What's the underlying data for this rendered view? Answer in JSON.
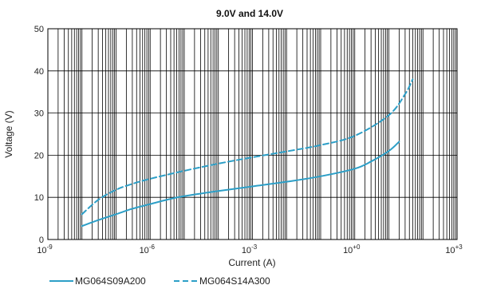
{
  "chart_data": {
    "type": "line",
    "title": "9.0V and 14.0V",
    "xlabel": "Current (A)",
    "ylabel": "Voltage (V)",
    "x_scale": "log",
    "xlim": [
      1e-09,
      1000
    ],
    "ylim": [
      0,
      50
    ],
    "x_ticks": [
      {
        "value": 1e-09,
        "base": "10",
        "exp": "-9"
      },
      {
        "value": 1e-06,
        "base": "10",
        "exp": "-6"
      },
      {
        "value": 0.001,
        "base": "10",
        "exp": "-3"
      },
      {
        "value": 1,
        "base": "10",
        "exp": "+0"
      },
      {
        "value": 1000,
        "base": "10",
        "exp": "+3"
      }
    ],
    "y_ticks": [
      0,
      10,
      20,
      30,
      40,
      50
    ],
    "grid": true,
    "legend_position": "bottom-left",
    "series": [
      {
        "name": "MG064S09A200",
        "style": "solid",
        "color": "#2d9fc7",
        "x": [
          1e-08,
          3e-08,
          1e-07,
          3e-07,
          1e-06,
          3e-06,
          1e-05,
          0.0001,
          0.001,
          0.01,
          0.1,
          1,
          3,
          10,
          20
        ],
        "y": [
          3.2,
          4.6,
          6.0,
          7.3,
          8.4,
          9.4,
          10.3,
          11.5,
          12.6,
          13.7,
          15.0,
          16.8,
          18.5,
          21.0,
          23.2
        ]
      },
      {
        "name": "MG064S14A300",
        "style": "dashed",
        "color": "#2d9fc7",
        "x": [
          1e-08,
          3e-08,
          1e-07,
          3e-07,
          1e-06,
          1e-05,
          0.0001,
          0.001,
          0.01,
          0.1,
          1,
          10,
          30,
          50
        ],
        "y": [
          6.0,
          9.4,
          11.8,
          13.2,
          14.4,
          16.3,
          18.0,
          19.5,
          20.9,
          22.4,
          24.6,
          29.5,
          34.5,
          38.0
        ]
      }
    ]
  }
}
